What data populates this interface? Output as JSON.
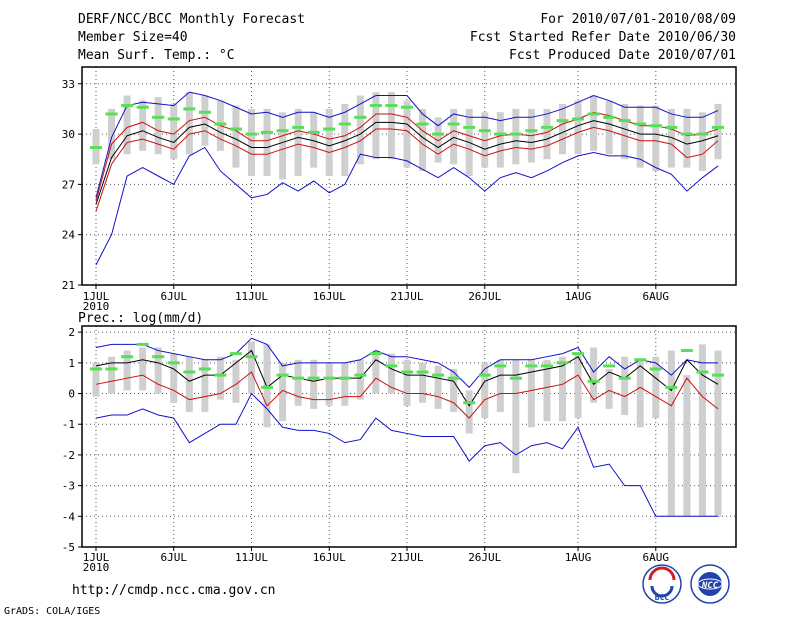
{
  "header": {
    "title": "DERF/NCC/BCC Monthly Forecast",
    "member_size": "Member Size=40",
    "variable": "Mean Surf. Temp.: °C",
    "period": "For 2010/07/01-2010/08/09",
    "started": "Fcst Started Refer Date 2010/06/30",
    "produced": "Fcst Produced Date 2010/07/01"
  },
  "footer": {
    "url": "http://cmdp.ncc.cma.gov.cn",
    "grads": "GrADS: COLA/IGES"
  },
  "logos": {
    "bcc": "BCC",
    "ncc": "NCC"
  },
  "colors": {
    "bar": "#cfcfcf",
    "green": "#55e055",
    "red": "#cc1111",
    "blue": "#1111cc",
    "black": "#000000"
  },
  "chart_data": [
    {
      "type": "line",
      "title": "Mean Surf. Temp.: °C",
      "x_tick_labels": [
        "1JUL",
        "6JUL",
        "11JUL",
        "16JUL",
        "21JUL",
        "26JUL",
        "1AUG",
        "6AUG"
      ],
      "x_tick_days": [
        1,
        6,
        11,
        16,
        21,
        26,
        32,
        37
      ],
      "x_year_label": "2010",
      "ylim": [
        21,
        34
      ],
      "y_ticks": [
        21,
        24,
        27,
        30,
        33
      ],
      "series": [
        {
          "name": "box-top",
          "values": [
            30.3,
            31.5,
            32.3,
            32.0,
            32.2,
            31.8,
            32.5,
            32.3,
            32.0,
            31.7,
            31.5,
            31.5,
            31.3,
            31.5,
            31.3,
            31.5,
            31.8,
            32.3,
            32.5,
            32.5,
            32.0,
            31.5,
            31.0,
            31.5,
            31.5,
            31.3,
            31.3,
            31.5,
            31.5,
            31.5,
            31.8,
            32.0,
            32.3,
            32.0,
            31.8,
            31.7,
            31.7,
            31.5,
            31.5,
            31.3,
            31.8
          ]
        },
        {
          "name": "box-bottom",
          "values": [
            28.2,
            28.5,
            28.8,
            29.0,
            28.8,
            28.5,
            28.8,
            29.3,
            29.0,
            28.0,
            27.5,
            27.5,
            27.3,
            27.5,
            28.0,
            27.5,
            27.5,
            28.2,
            28.5,
            28.5,
            28.0,
            27.8,
            28.3,
            28.2,
            27.5,
            28.0,
            28.0,
            28.2,
            28.3,
            28.5,
            28.8,
            28.8,
            29.0,
            28.8,
            28.5,
            28.0,
            27.8,
            28.0,
            28.0,
            27.8,
            28.5
          ]
        },
        {
          "name": "ensemble",
          "values": [
            29.2,
            31.2,
            31.7,
            31.6,
            31.0,
            30.9,
            31.5,
            31.3,
            30.6,
            30.3,
            30.0,
            30.1,
            30.2,
            30.4,
            30.1,
            30.3,
            30.6,
            31.0,
            31.7,
            31.7,
            31.6,
            30.6,
            30.0,
            30.6,
            30.4,
            30.2,
            30.0,
            30.0,
            30.2,
            30.4,
            30.8,
            30.9,
            31.2,
            31.0,
            30.8,
            30.6,
            30.5,
            30.4,
            30.0,
            30.0,
            30.4
          ]
        },
        {
          "name": "upper",
          "values": [
            26.2,
            29.8,
            31.7,
            31.9,
            31.8,
            31.7,
            32.5,
            32.3,
            32.0,
            31.6,
            31.2,
            31.3,
            31.0,
            31.3,
            31.3,
            31.0,
            31.3,
            31.8,
            32.3,
            32.3,
            32.3,
            31.2,
            30.5,
            31.2,
            31.0,
            31.0,
            30.8,
            31.0,
            31.0,
            31.2,
            31.5,
            31.9,
            32.3,
            32.0,
            31.6,
            31.6,
            31.6,
            31.2,
            31.0,
            31.0,
            31.4
          ]
        },
        {
          "name": "red-upper",
          "values": [
            26.0,
            29.4,
            30.4,
            30.7,
            30.2,
            30.0,
            30.8,
            31.0,
            30.5,
            30.2,
            29.6,
            29.6,
            29.9,
            30.2,
            30.0,
            29.7,
            29.9,
            30.4,
            31.2,
            31.2,
            31.0,
            30.2,
            29.6,
            30.2,
            29.9,
            29.6,
            29.9,
            30.0,
            29.9,
            30.1,
            30.6,
            30.9,
            31.3,
            31.1,
            30.8,
            30.5,
            30.5,
            30.3,
            29.9,
            30.0,
            30.3
          ]
        },
        {
          "name": "black-mean",
          "values": [
            25.8,
            28.6,
            29.9,
            30.2,
            29.8,
            29.5,
            30.4,
            30.6,
            30.1,
            29.7,
            29.2,
            29.2,
            29.5,
            29.8,
            29.6,
            29.3,
            29.6,
            30.0,
            30.7,
            30.7,
            30.6,
            29.8,
            29.2,
            29.8,
            29.5,
            29.1,
            29.4,
            29.6,
            29.5,
            29.7,
            30.1,
            30.5,
            30.8,
            30.6,
            30.3,
            30.0,
            30.0,
            29.8,
            29.4,
            29.6,
            29.9
          ]
        },
        {
          "name": "red-lower",
          "values": [
            25.4,
            28.2,
            29.5,
            29.7,
            29.4,
            29.1,
            30.0,
            30.2,
            29.7,
            29.3,
            28.8,
            28.8,
            29.1,
            29.4,
            29.2,
            28.9,
            29.2,
            29.6,
            30.3,
            30.3,
            30.2,
            29.4,
            28.8,
            29.4,
            29.1,
            28.7,
            29.0,
            29.2,
            29.1,
            29.3,
            29.7,
            30.1,
            30.4,
            30.2,
            29.9,
            29.6,
            29.6,
            29.4,
            28.6,
            28.8,
            29.6
          ]
        },
        {
          "name": "lower",
          "values": [
            22.2,
            24.0,
            27.5,
            28.0,
            27.5,
            27.0,
            28.7,
            29.2,
            27.8,
            27.0,
            26.2,
            26.4,
            27.1,
            26.6,
            27.2,
            26.5,
            27.0,
            28.8,
            28.6,
            28.6,
            28.4,
            27.9,
            27.4,
            28.0,
            27.4,
            26.6,
            27.4,
            27.7,
            27.4,
            27.8,
            28.3,
            28.7,
            28.9,
            28.7,
            28.7,
            28.5,
            28.0,
            27.6,
            26.6,
            27.4,
            28.1
          ]
        }
      ]
    },
    {
      "type": "line",
      "title": "Prec.: log(mm/d)",
      "x_tick_labels": [
        "1JUL",
        "6JUL",
        "11JUL",
        "16JUL",
        "21JUL",
        "26JUL",
        "1AUG",
        "6AUG"
      ],
      "x_tick_days": [
        1,
        6,
        11,
        16,
        21,
        26,
        32,
        37
      ],
      "x_year_label": "2010",
      "ylim": [
        -5,
        2.2
      ],
      "y_ticks": [
        -5,
        -4,
        -3,
        -2,
        -1,
        0,
        1,
        2
      ],
      "series": [
        {
          "name": "box-top",
          "values": [
            1.0,
            1.2,
            1.4,
            1.5,
            1.5,
            1.3,
            1.2,
            1.1,
            1.2,
            1.1,
            1.7,
            1.6,
            1.0,
            1.1,
            1.1,
            1.0,
            1.0,
            1.1,
            1.4,
            1.3,
            1.1,
            1.0,
            0.9,
            0.8,
            0.1,
            1.0,
            1.1,
            1.1,
            1.1,
            1.1,
            1.2,
            1.3,
            1.5,
            0.8,
            1.2,
            1.1,
            1.2,
            1.4,
            0.6,
            1.6,
            1.4
          ]
        },
        {
          "name": "box-bottom",
          "values": [
            -0.1,
            0.0,
            0.1,
            0.1,
            0.0,
            -0.3,
            -0.6,
            -0.6,
            -0.2,
            -0.3,
            0.0,
            -1.1,
            -0.9,
            -0.4,
            -0.5,
            -0.4,
            -0.4,
            -0.2,
            0.0,
            0.0,
            -0.4,
            -0.3,
            -0.5,
            -0.6,
            -1.3,
            -0.8,
            -0.6,
            -2.6,
            -1.1,
            -0.9,
            -0.9,
            -0.8,
            -0.3,
            -0.5,
            -0.7,
            -1.1,
            -0.8,
            -4.0,
            -4.0,
            -4.0,
            -4.0
          ]
        },
        {
          "name": "ensemble",
          "values": [
            0.8,
            0.8,
            1.2,
            1.6,
            1.2,
            1.0,
            0.7,
            0.8,
            0.6,
            1.3,
            1.2,
            0.2,
            0.6,
            0.5,
            0.5,
            0.5,
            0.5,
            0.6,
            1.3,
            0.9,
            0.7,
            0.7,
            0.6,
            0.5,
            -0.3,
            0.6,
            0.9,
            0.5,
            0.9,
            0.9,
            1.0,
            1.3,
            0.4,
            0.9,
            0.5,
            1.1,
            0.8,
            0.2,
            1.4,
            0.7,
            0.6
          ]
        },
        {
          "name": "upper",
          "values": [
            1.5,
            1.6,
            1.6,
            1.6,
            1.4,
            1.3,
            1.2,
            1.1,
            1.1,
            1.3,
            1.8,
            1.6,
            0.9,
            1.0,
            1.0,
            1.0,
            1.0,
            1.1,
            1.4,
            1.2,
            1.2,
            1.1,
            1.0,
            0.7,
            0.2,
            0.8,
            1.1,
            1.1,
            1.1,
            1.2,
            1.3,
            1.5,
            0.7,
            1.2,
            0.8,
            1.1,
            1.0,
            0.6,
            1.1,
            1.0,
            1.0
          ]
        },
        {
          "name": "black-mean",
          "values": [
            0.9,
            1.0,
            1.0,
            1.1,
            1.0,
            0.8,
            0.4,
            0.6,
            0.6,
            1.0,
            1.4,
            0.2,
            0.6,
            0.5,
            0.4,
            0.5,
            0.5,
            0.5,
            1.1,
            0.8,
            0.6,
            0.6,
            0.5,
            0.4,
            -0.4,
            0.4,
            0.6,
            0.6,
            0.7,
            0.8,
            0.9,
            1.2,
            0.3,
            0.7,
            0.5,
            0.9,
            0.5,
            0.1,
            1.1,
            0.6,
            0.3
          ]
        },
        {
          "name": "red-lower",
          "values": [
            0.3,
            0.4,
            0.5,
            0.6,
            0.3,
            0.1,
            -0.2,
            -0.1,
            0.0,
            0.3,
            0.7,
            -0.4,
            0.1,
            -0.1,
            -0.2,
            -0.2,
            -0.1,
            -0.1,
            0.5,
            0.2,
            0.0,
            0.0,
            -0.1,
            -0.3,
            -0.8,
            -0.2,
            0.0,
            0.0,
            0.1,
            0.2,
            0.3,
            0.6,
            -0.2,
            0.1,
            -0.1,
            0.2,
            -0.1,
            -0.4,
            0.5,
            -0.1,
            -0.5
          ]
        },
        {
          "name": "lower",
          "values": [
            -0.8,
            -0.7,
            -0.7,
            -0.5,
            -0.7,
            -0.8,
            -1.6,
            -1.3,
            -1.0,
            -1.0,
            0.0,
            -0.5,
            -1.1,
            -1.2,
            -1.2,
            -1.3,
            -1.6,
            -1.5,
            -0.8,
            -1.2,
            -1.3,
            -1.4,
            -1.4,
            -1.4,
            -2.2,
            -1.7,
            -1.6,
            -2.0,
            -1.7,
            -1.6,
            -1.8,
            -1.1,
            -2.4,
            -2.3,
            -3.0,
            -3.0,
            -4.0,
            -4.0,
            -4.0,
            -4.0,
            -4.0
          ]
        }
      ]
    }
  ]
}
